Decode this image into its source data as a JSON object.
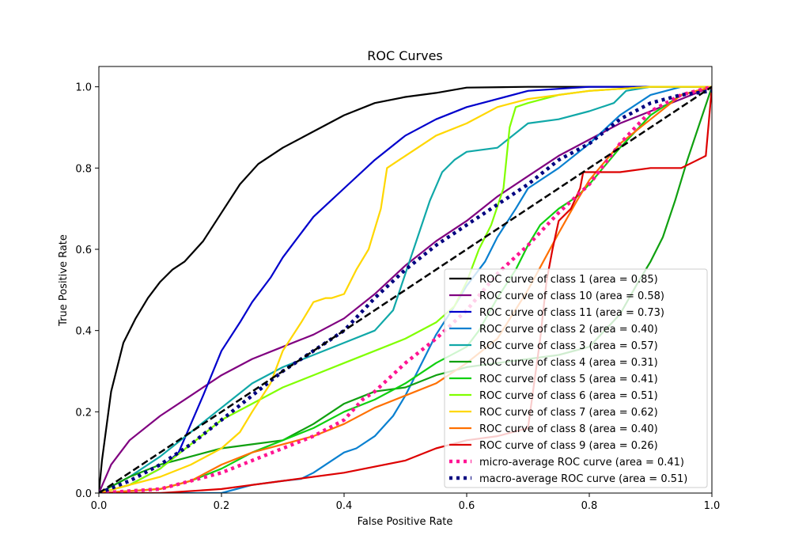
{
  "chart_data": {
    "type": "line",
    "title": "ROC Curves",
    "xlabel": "False Positive Rate",
    "ylabel": "True Positive Rate",
    "xlim": [
      0.0,
      1.0
    ],
    "ylim": [
      0.0,
      1.05
    ],
    "xticks": [
      "0.0",
      "0.2",
      "0.4",
      "0.6",
      "0.8",
      "1.0"
    ],
    "yticks": [
      "0.0",
      "0.2",
      "0.4",
      "0.6",
      "0.8",
      "1.0"
    ],
    "grid": false,
    "legend_position": "lower-right",
    "chance_line": {
      "x": [
        0,
        1
      ],
      "y": [
        0,
        1
      ],
      "color": "#000000",
      "style": "dashed"
    },
    "series": [
      {
        "name": "ROC curve of class 1 (area = 0.85)",
        "color": "#000000",
        "style": "solid",
        "x": [
          0,
          0.005,
          0.02,
          0.04,
          0.06,
          0.08,
          0.1,
          0.12,
          0.14,
          0.17,
          0.2,
          0.23,
          0.26,
          0.3,
          0.35,
          0.4,
          0.45,
          0.5,
          0.55,
          0.6,
          0.7,
          0.8,
          0.9,
          1.0
        ],
        "y": [
          0,
          0.08,
          0.25,
          0.37,
          0.43,
          0.48,
          0.52,
          0.55,
          0.57,
          0.62,
          0.69,
          0.76,
          0.81,
          0.85,
          0.89,
          0.93,
          0.96,
          0.975,
          0.985,
          0.998,
          1.0,
          1.0,
          1.0,
          1.0
        ]
      },
      {
        "name": "ROC curve of class 10 (area = 0.58)",
        "color": "#800080",
        "style": "solid",
        "x": [
          0,
          0.02,
          0.05,
          0.1,
          0.15,
          0.2,
          0.25,
          0.3,
          0.35,
          0.4,
          0.45,
          0.5,
          0.55,
          0.6,
          0.65,
          0.7,
          0.75,
          0.8,
          0.85,
          0.9,
          0.95,
          1.0
        ],
        "y": [
          0,
          0.07,
          0.13,
          0.19,
          0.24,
          0.29,
          0.33,
          0.36,
          0.39,
          0.43,
          0.49,
          0.56,
          0.62,
          0.67,
          0.73,
          0.78,
          0.83,
          0.87,
          0.91,
          0.94,
          0.97,
          1.0
        ]
      },
      {
        "name": "ROC curve of class 11 (area = 0.73)",
        "color": "#0000cc",
        "style": "solid",
        "x": [
          0,
          0.05,
          0.1,
          0.13,
          0.15,
          0.17,
          0.2,
          0.23,
          0.25,
          0.28,
          0.3,
          0.32,
          0.35,
          0.4,
          0.45,
          0.5,
          0.55,
          0.6,
          0.65,
          0.7,
          0.75,
          0.8,
          0.9,
          1.0
        ],
        "y": [
          0,
          0.02,
          0.06,
          0.1,
          0.17,
          0.24,
          0.35,
          0.42,
          0.47,
          0.53,
          0.58,
          0.62,
          0.68,
          0.75,
          0.82,
          0.88,
          0.92,
          0.95,
          0.97,
          0.99,
          0.995,
          1.0,
          1.0,
          1.0
        ]
      },
      {
        "name": "ROC curve of class 2 (area = 0.40)",
        "color": "#0a80d0",
        "style": "solid",
        "x": [
          0,
          0.2,
          0.25,
          0.3,
          0.33,
          0.35,
          0.38,
          0.4,
          0.42,
          0.45,
          0.48,
          0.5,
          0.53,
          0.55,
          0.58,
          0.6,
          0.63,
          0.65,
          0.68,
          0.7,
          0.75,
          0.8,
          0.85,
          0.9,
          0.95,
          1.0
        ],
        "y": [
          0,
          0.0,
          0.02,
          0.03,
          0.035,
          0.05,
          0.08,
          0.1,
          0.11,
          0.14,
          0.19,
          0.24,
          0.33,
          0.39,
          0.46,
          0.51,
          0.57,
          0.63,
          0.7,
          0.75,
          0.8,
          0.86,
          0.93,
          0.98,
          1.0,
          1.0
        ]
      },
      {
        "name": "ROC curve of class 3 (area = 0.57)",
        "color": "#10a8a8",
        "style": "solid",
        "x": [
          0,
          0.05,
          0.1,
          0.15,
          0.2,
          0.25,
          0.3,
          0.35,
          0.4,
          0.45,
          0.48,
          0.5,
          0.52,
          0.54,
          0.56,
          0.58,
          0.6,
          0.65,
          0.7,
          0.75,
          0.8,
          0.84,
          0.86,
          0.9,
          1.0
        ],
        "y": [
          0,
          0.04,
          0.09,
          0.15,
          0.21,
          0.27,
          0.31,
          0.34,
          0.37,
          0.4,
          0.45,
          0.54,
          0.63,
          0.72,
          0.79,
          0.82,
          0.84,
          0.85,
          0.91,
          0.92,
          0.94,
          0.96,
          0.99,
          1.0,
          1.0
        ]
      },
      {
        "name": "ROC curve of class 4 (area = 0.31)",
        "color": "#10a010",
        "style": "solid",
        "x": [
          0,
          0.05,
          0.1,
          0.15,
          0.2,
          0.25,
          0.3,
          0.35,
          0.4,
          0.45,
          0.5,
          0.55,
          0.6,
          0.65,
          0.7,
          0.75,
          0.8,
          0.85,
          0.88,
          0.9,
          0.92,
          0.94,
          0.96,
          0.98,
          1.0
        ],
        "y": [
          0,
          0.04,
          0.07,
          0.09,
          0.11,
          0.12,
          0.13,
          0.17,
          0.22,
          0.25,
          0.26,
          0.29,
          0.31,
          0.32,
          0.33,
          0.34,
          0.36,
          0.44,
          0.52,
          0.57,
          0.63,
          0.72,
          0.82,
          0.91,
          1.0
        ]
      },
      {
        "name": "ROC curve of class 5 (area = 0.41)",
        "color": "#10d010",
        "style": "solid",
        "x": [
          0,
          0.1,
          0.15,
          0.2,
          0.25,
          0.3,
          0.35,
          0.4,
          0.45,
          0.5,
          0.55,
          0.6,
          0.62,
          0.65,
          0.68,
          0.7,
          0.72,
          0.75,
          0.78,
          0.8,
          0.85,
          0.9,
          0.95,
          1.0
        ],
        "y": [
          0,
          0.01,
          0.03,
          0.06,
          0.1,
          0.13,
          0.16,
          0.2,
          0.23,
          0.27,
          0.32,
          0.36,
          0.4,
          0.48,
          0.55,
          0.61,
          0.66,
          0.7,
          0.73,
          0.76,
          0.85,
          0.93,
          0.98,
          1.0
        ]
      },
      {
        "name": "ROC curve of class 6 (area = 0.51)",
        "color": "#80ff00",
        "style": "solid",
        "x": [
          0,
          0.05,
          0.1,
          0.15,
          0.2,
          0.25,
          0.3,
          0.35,
          0.4,
          0.45,
          0.5,
          0.55,
          0.58,
          0.6,
          0.62,
          0.64,
          0.66,
          0.67,
          0.68,
          0.7,
          0.75,
          0.8,
          0.9,
          1.0
        ],
        "y": [
          0,
          0.02,
          0.06,
          0.12,
          0.18,
          0.22,
          0.26,
          0.29,
          0.32,
          0.35,
          0.38,
          0.42,
          0.46,
          0.52,
          0.6,
          0.66,
          0.75,
          0.9,
          0.95,
          0.96,
          0.98,
          0.99,
          1.0,
          1.0
        ]
      },
      {
        "name": "ROC curve of class 7 (area = 0.62)",
        "color": "#ffd700",
        "style": "solid",
        "x": [
          0,
          0.05,
          0.1,
          0.15,
          0.2,
          0.23,
          0.25,
          0.28,
          0.3,
          0.33,
          0.35,
          0.37,
          0.38,
          0.4,
          0.42,
          0.44,
          0.46,
          0.47,
          0.48,
          0.5,
          0.55,
          0.6,
          0.65,
          0.7,
          0.8,
          0.9,
          1.0
        ],
        "y": [
          0,
          0.02,
          0.04,
          0.07,
          0.11,
          0.15,
          0.2,
          0.27,
          0.35,
          0.42,
          0.47,
          0.48,
          0.48,
          0.49,
          0.55,
          0.6,
          0.7,
          0.8,
          0.81,
          0.83,
          0.88,
          0.91,
          0.95,
          0.97,
          0.99,
          1.0,
          1.0
        ]
      },
      {
        "name": "ROC curve of class 8 (area = 0.40)",
        "color": "#ff7000",
        "style": "solid",
        "x": [
          0,
          0.1,
          0.15,
          0.2,
          0.25,
          0.3,
          0.35,
          0.4,
          0.45,
          0.5,
          0.55,
          0.6,
          0.65,
          0.7,
          0.75,
          0.78,
          0.8,
          0.85,
          0.9,
          0.95,
          1.0
        ],
        "y": [
          0,
          0.01,
          0.03,
          0.07,
          0.1,
          0.12,
          0.14,
          0.17,
          0.21,
          0.24,
          0.27,
          0.32,
          0.38,
          0.5,
          0.64,
          0.72,
          0.77,
          0.86,
          0.92,
          0.98,
          1.0
        ]
      },
      {
        "name": "ROC curve of class 9 (area = 0.26)",
        "color": "#dd0000",
        "style": "solid",
        "x": [
          0,
          0.1,
          0.2,
          0.3,
          0.4,
          0.5,
          0.55,
          0.6,
          0.65,
          0.7,
          0.72,
          0.73,
          0.74,
          0.75,
          0.77,
          0.785,
          0.79,
          0.85,
          0.9,
          0.95,
          0.99,
          1.0
        ],
        "y": [
          0,
          0.0,
          0.01,
          0.03,
          0.05,
          0.08,
          0.11,
          0.13,
          0.14,
          0.16,
          0.38,
          0.52,
          0.6,
          0.67,
          0.7,
          0.75,
          0.79,
          0.79,
          0.8,
          0.8,
          0.83,
          1.0
        ]
      },
      {
        "name": "micro-average ROC curve (area = 0.41)",
        "color": "#ff1493",
        "style": "dotted",
        "x": [
          0,
          0.1,
          0.15,
          0.2,
          0.25,
          0.3,
          0.35,
          0.4,
          0.43,
          0.45,
          0.5,
          0.55,
          0.6,
          0.65,
          0.7,
          0.75,
          0.8,
          0.85,
          0.9,
          0.95,
          1.0
        ],
        "y": [
          0,
          0.01,
          0.03,
          0.05,
          0.08,
          0.11,
          0.14,
          0.18,
          0.23,
          0.25,
          0.32,
          0.38,
          0.45,
          0.54,
          0.61,
          0.69,
          0.76,
          0.86,
          0.94,
          0.98,
          1.0
        ]
      },
      {
        "name": "macro-average ROC curve (area = 0.51)",
        "color": "#000080",
        "style": "dotted",
        "x": [
          0,
          0.05,
          0.1,
          0.15,
          0.2,
          0.25,
          0.3,
          0.35,
          0.4,
          0.45,
          0.5,
          0.55,
          0.6,
          0.65,
          0.7,
          0.75,
          0.8,
          0.85,
          0.9,
          0.95,
          1.0
        ],
        "y": [
          0,
          0.03,
          0.07,
          0.12,
          0.18,
          0.24,
          0.3,
          0.35,
          0.4,
          0.48,
          0.55,
          0.61,
          0.66,
          0.71,
          0.76,
          0.82,
          0.86,
          0.92,
          0.96,
          0.98,
          0.99
        ]
      }
    ]
  }
}
